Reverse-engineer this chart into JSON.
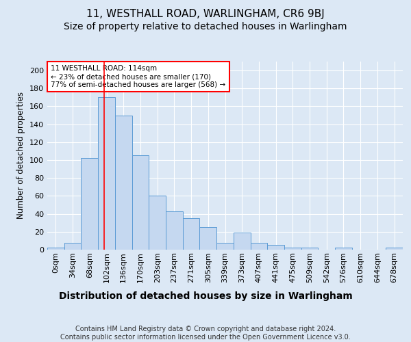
{
  "title1": "11, WESTHALL ROAD, WARLINGHAM, CR6 9BJ",
  "title2": "Size of property relative to detached houses in Warlingham",
  "xlabel": "Distribution of detached houses by size in Warlingham",
  "ylabel": "Number of detached properties",
  "footnote": "Contains HM Land Registry data © Crown copyright and database right 2024.\nContains public sector information licensed under the Open Government Licence v3.0.",
  "categories": [
    "0sqm",
    "34sqm",
    "68sqm",
    "102sqm",
    "136sqm",
    "170sqm",
    "203sqm",
    "237sqm",
    "271sqm",
    "305sqm",
    "339sqm",
    "373sqm",
    "407sqm",
    "441sqm",
    "475sqm",
    "509sqm",
    "542sqm",
    "576sqm",
    "610sqm",
    "644sqm",
    "678sqm"
  ],
  "values": [
    2,
    8,
    102,
    170,
    150,
    105,
    60,
    43,
    35,
    25,
    8,
    19,
    8,
    5,
    2,
    2,
    0,
    2,
    0,
    0,
    2
  ],
  "bar_color": "#c5d8f0",
  "bar_edge_color": "#5b9bd5",
  "bar_width": 1.0,
  "annotation_text": "11 WESTHALL ROAD: 114sqm\n← 23% of detached houses are smaller (170)\n77% of semi-detached houses are larger (568) →",
  "annotation_box_color": "white",
  "annotation_box_edge_color": "red",
  "ylim": [
    0,
    210
  ],
  "yticks": [
    0,
    20,
    40,
    60,
    80,
    100,
    120,
    140,
    160,
    180,
    200
  ],
  "background_color": "#dce8f5",
  "plot_bg_color": "#dce8f5",
  "grid_color": "white",
  "title1_fontsize": 11,
  "title2_fontsize": 10,
  "xlabel_fontsize": 10,
  "ylabel_fontsize": 8.5,
  "footnote_fontsize": 7,
  "tick_fontsize": 8
}
